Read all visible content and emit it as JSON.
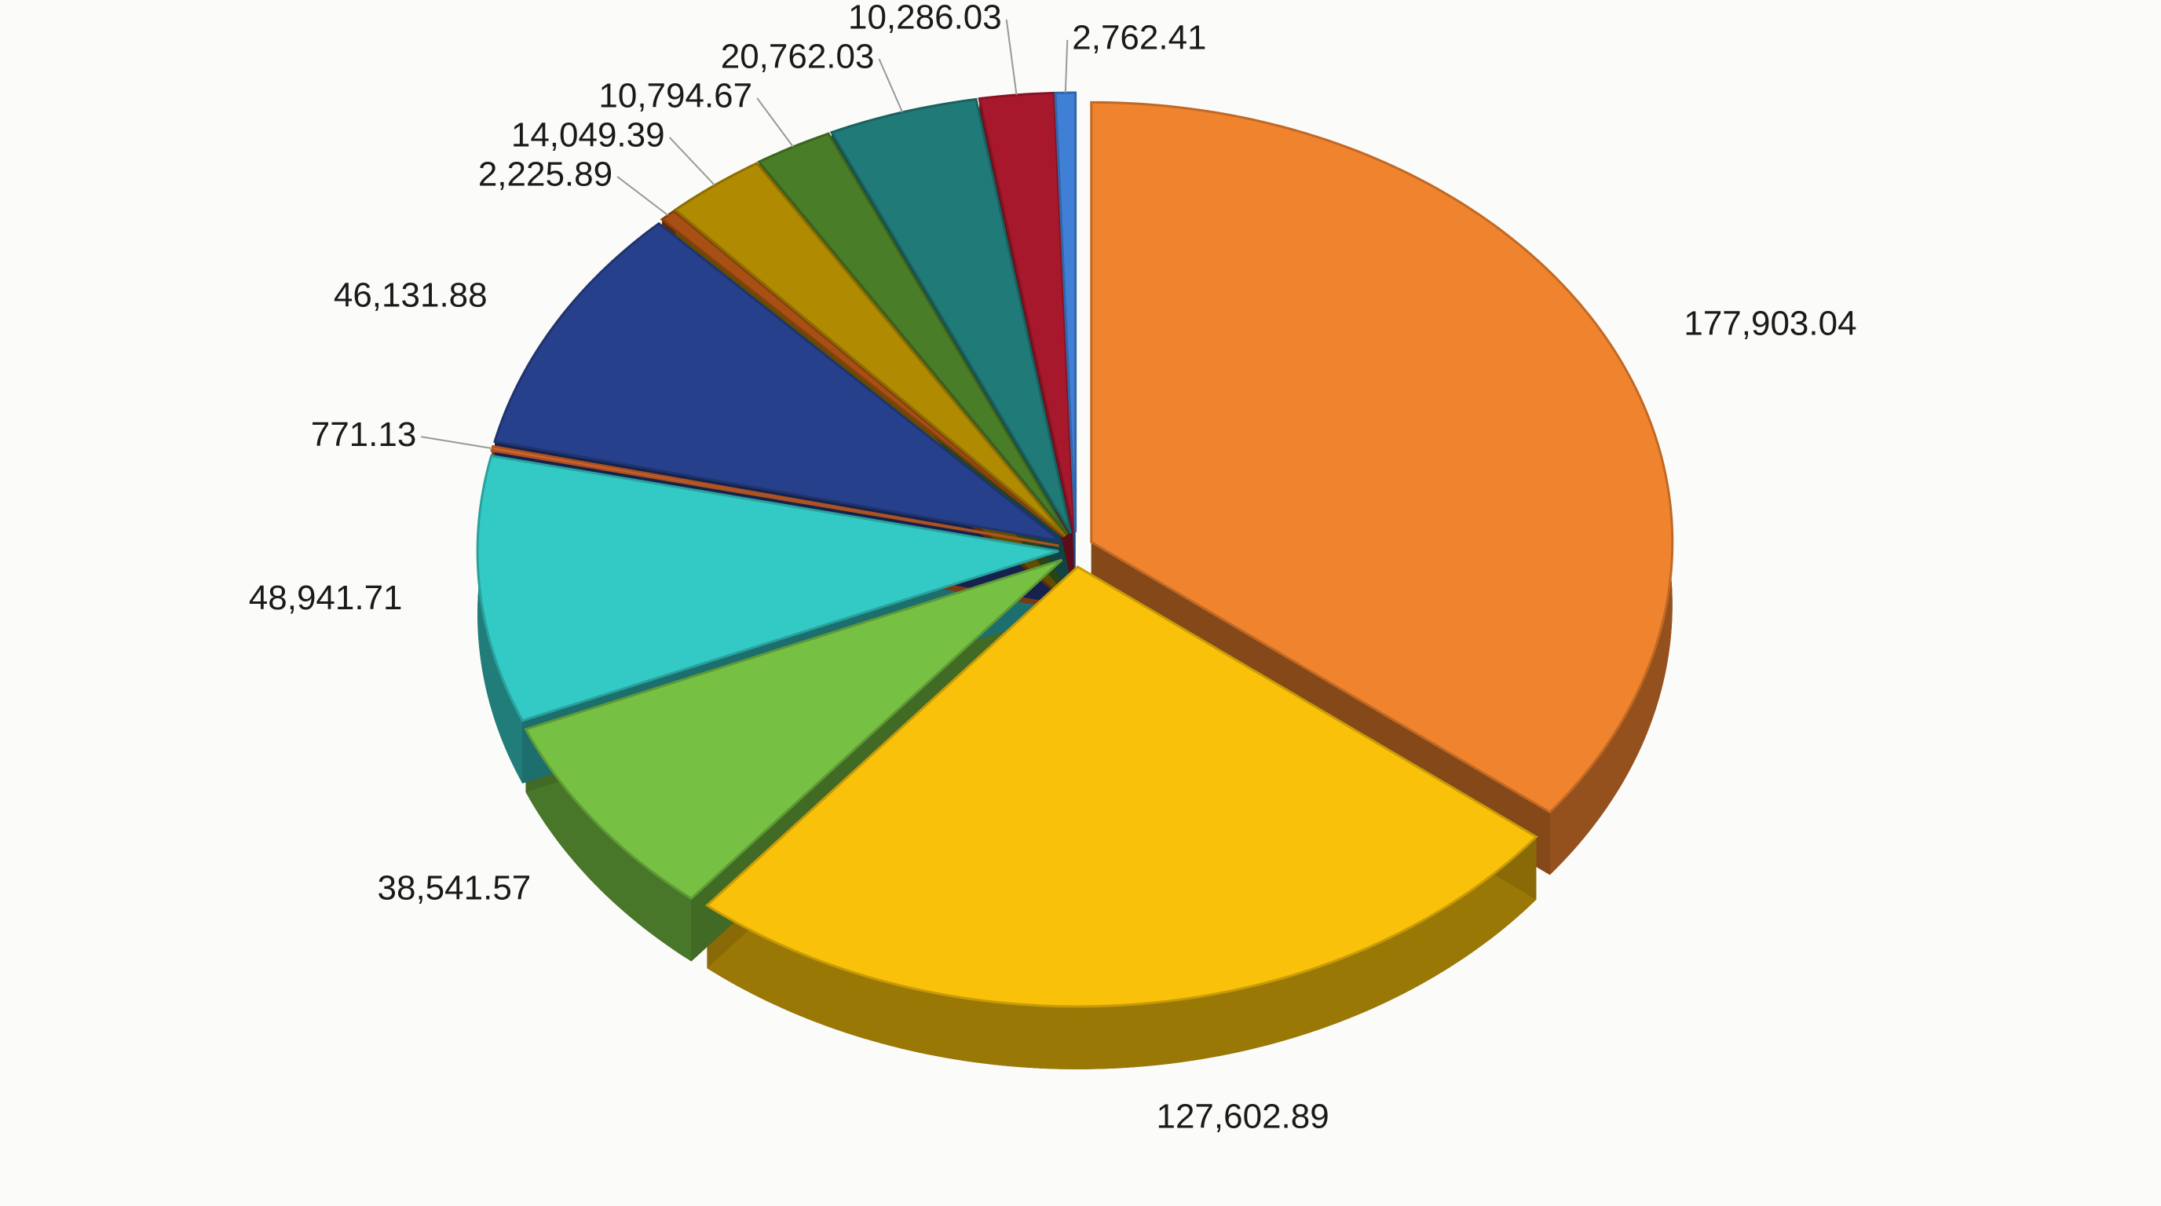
{
  "chart_data": {
    "type": "pie",
    "values": [
      177903.04,
      127602.89,
      38541.57,
      48941.71,
      771.13,
      46131.88,
      2225.89,
      14049.39,
      10794.67,
      20762.03,
      10286.03,
      2762.41
    ],
    "value_labels": [
      "177,903.04",
      "127,602.89",
      "38,541.57",
      "48,941.71",
      "771.13",
      "46,131.88",
      "2,225.89",
      "14,049.39",
      "10,794.67",
      "20,762.03",
      "10,286.03",
      "2,762.41"
    ],
    "colors": [
      "#f0832e",
      "#f9c10a",
      "#76c043",
      "#33c9c4",
      "#d8672a",
      "#27408b",
      "#a84f14",
      "#b08a00",
      "#4a7d28",
      "#1f7a78",
      "#a8182c",
      "#3f7fd6"
    ]
  }
}
